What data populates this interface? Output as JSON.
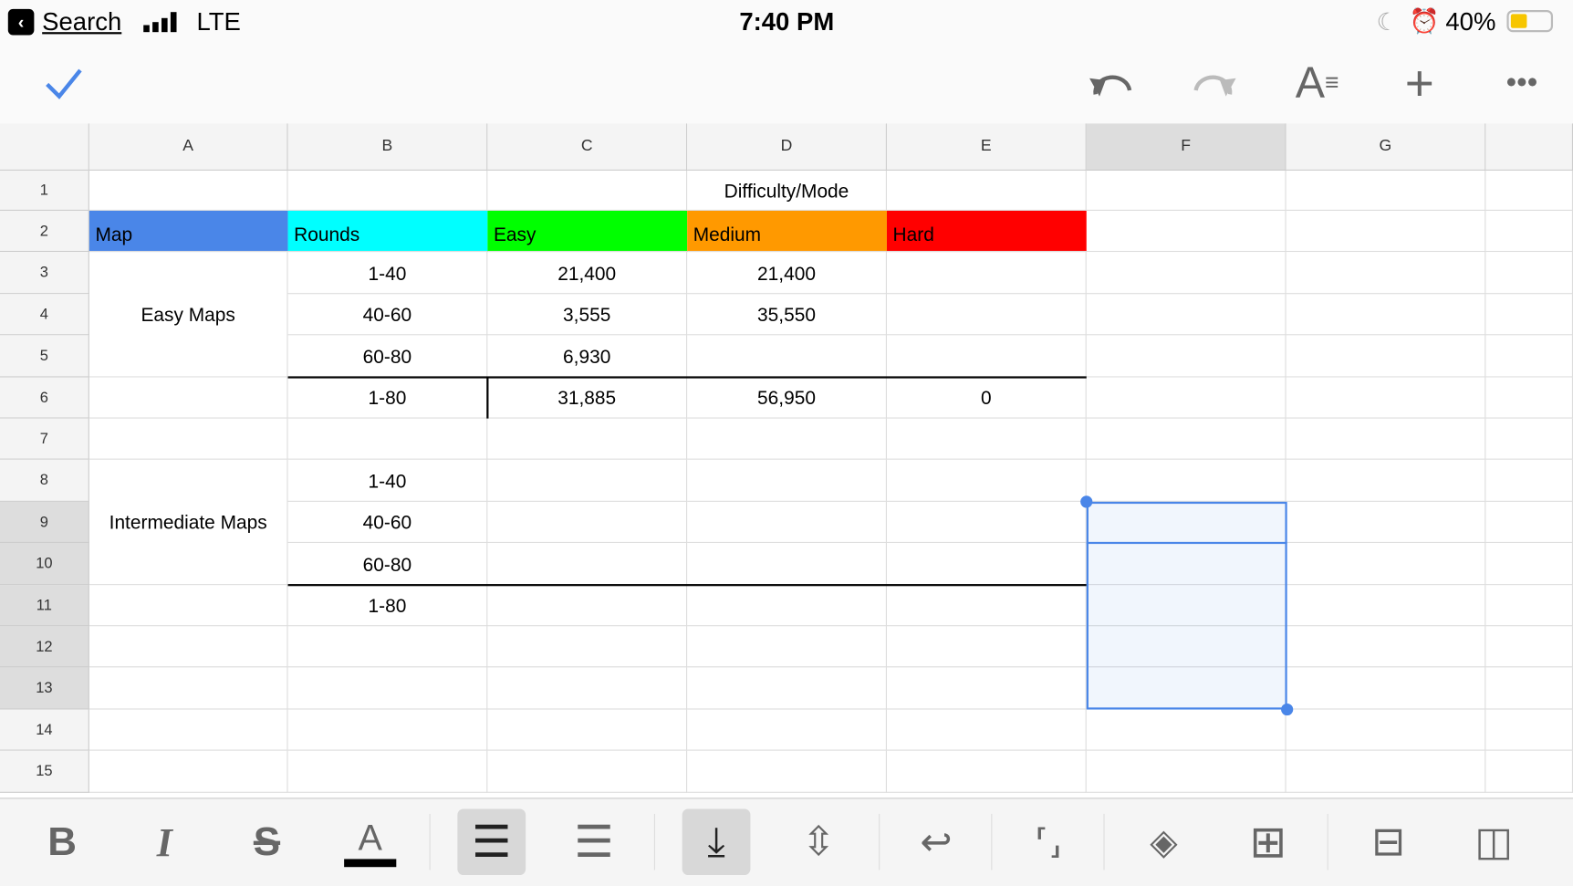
{
  "status_bar": {
    "back_label": "Search",
    "network": "LTE",
    "time": "7:40 PM",
    "battery": "40%",
    "battery_level": 0.4
  },
  "toolbar": {
    "icons": [
      "check-icon",
      "undo-icon",
      "redo-icon",
      "text-format-icon",
      "plus-icon",
      "more-icon"
    ]
  },
  "columns": [
    "A",
    "B",
    "C",
    "D",
    "E",
    "F",
    "G"
  ],
  "rows": [
    "1",
    "2",
    "3",
    "4",
    "5",
    "6",
    "7",
    "8",
    "9",
    "10",
    "11",
    "12",
    "13",
    "14",
    "15"
  ],
  "cells": {
    "D1": "Difficulty/Mode",
    "A2": "Map",
    "B2": "Rounds",
    "C2": "Easy",
    "D2": "Medium",
    "E2": "Hard",
    "A4": "Easy Maps",
    "B3": "1-40",
    "C3": "21,400",
    "D3": "21,400",
    "B4": "40-60",
    "C4": "3,555",
    "D4": "35,550",
    "B5": "60-80",
    "C5": "6,930",
    "B6": "1-80",
    "C6": "31,885",
    "D6": "56,950",
    "E6": "0",
    "A9": "Intermediate Maps",
    "B8": "1-40",
    "B9": "40-60",
    "B10": "60-80",
    "B11": "1-80"
  },
  "header_colors": {
    "Map": "#4a86e8",
    "Rounds": "#00ffff",
    "Easy": "#00ff00",
    "Medium": "#ff9900",
    "Hard": "#ff0000"
  },
  "selection": "F9:F13",
  "accent": "#4a86e8",
  "format_bar": [
    "bold-icon",
    "italic-icon",
    "strikethrough-icon",
    "text-color-icon",
    "align-left-icon",
    "align-center-icon",
    "valign-bottom-icon",
    "valign-middle-icon",
    "wrap-icon",
    "merge-icon",
    "fill-color-icon",
    "borders-icon",
    "insert-row-icon",
    "insert-column-icon"
  ]
}
